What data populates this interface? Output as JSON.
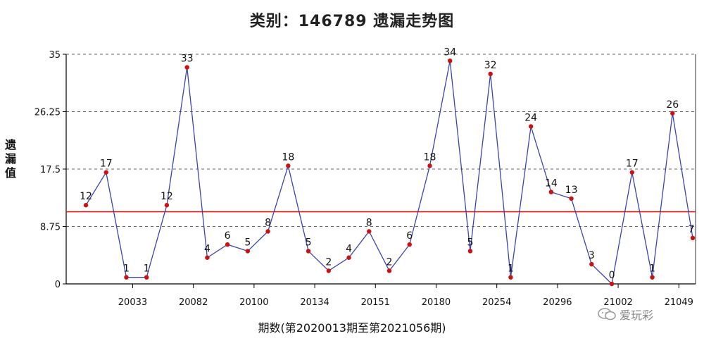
{
  "chart_data": {
    "type": "line",
    "title": "类别：146789 遗漏走势图",
    "xlabel": "期数(第2020013期至第2021056期)",
    "ylabel": "遗漏值",
    "ylim": [
      0,
      35
    ],
    "yticks": [
      "0",
      "8.75",
      "17.5",
      "26.25",
      "35"
    ],
    "xticks": [
      "20033",
      "20082",
      "20100",
      "20134",
      "20151",
      "20180",
      "20254",
      "20296",
      "21002",
      "21049"
    ],
    "reference_line": 11,
    "grid": "dashed horizontal",
    "series": [
      {
        "values": [
          12,
          17,
          1,
          1,
          12,
          33,
          4,
          6,
          5,
          8,
          18,
          5,
          2,
          4,
          8,
          2,
          6,
          18,
          34,
          5,
          32,
          1,
          24,
          14,
          13,
          3,
          0,
          17,
          1,
          26,
          7
        ]
      }
    ],
    "colors": {
      "line": "#3a44b0",
      "point": "#cc1111",
      "reference": "#d42020",
      "grid": "#666666"
    }
  },
  "watermark": {
    "text": "爱玩彩",
    "icon": "wechat-icon"
  }
}
